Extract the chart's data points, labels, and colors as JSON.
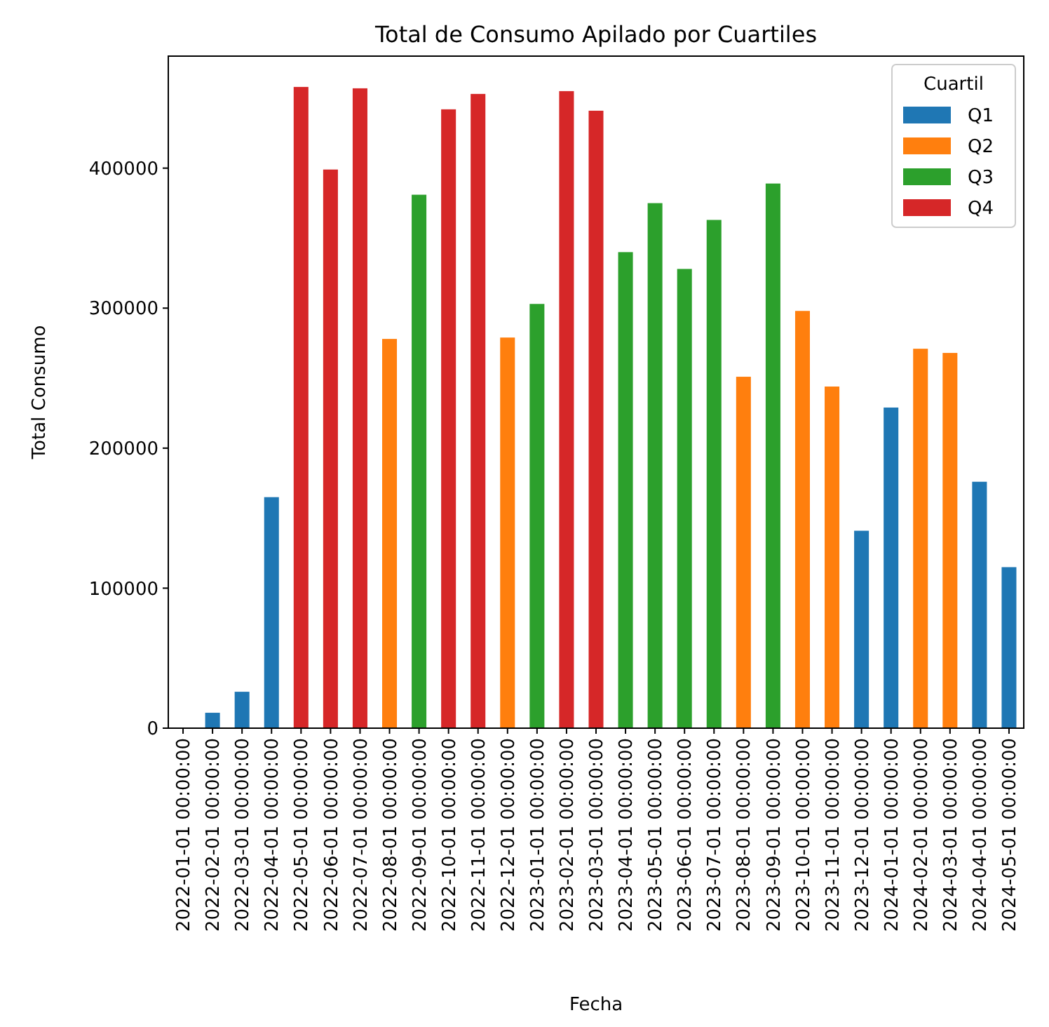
{
  "chart_data": {
    "type": "bar",
    "stacked": true,
    "title": "Total de Consumo Apilado por Cuartiles",
    "xlabel": "Fecha",
    "ylabel": "Total Consumo",
    "legend_title": "Cuartil",
    "legend": "top right",
    "grid": false,
    "categories": [
      "2022-01-01 00:00:00",
      "2022-02-01 00:00:00",
      "2022-03-01 00:00:00",
      "2022-04-01 00:00:00",
      "2022-05-01 00:00:00",
      "2022-06-01 00:00:00",
      "2022-07-01 00:00:00",
      "2022-08-01 00:00:00",
      "2022-09-01 00:00:00",
      "2022-10-01 00:00:00",
      "2022-11-01 00:00:00",
      "2022-12-01 00:00:00",
      "2023-01-01 00:00:00",
      "2023-02-01 00:00:00",
      "2023-03-01 00:00:00",
      "2023-04-01 00:00:00",
      "2023-05-01 00:00:00",
      "2023-06-01 00:00:00",
      "2023-07-01 00:00:00",
      "2023-08-01 00:00:00",
      "2023-09-01 00:00:00",
      "2023-10-01 00:00:00",
      "2023-11-01 00:00:00",
      "2023-12-01 00:00:00",
      "2024-01-01 00:00:00",
      "2024-02-01 00:00:00",
      "2024-03-01 00:00:00",
      "2024-04-01 00:00:00",
      "2024-05-01 00:00:00"
    ],
    "ylim": [
      0,
      480000
    ],
    "yticks": [
      0,
      100000,
      200000,
      300000,
      400000
    ],
    "series": [
      {
        "name": "Q1",
        "color": "#1f77b4",
        "values": [
          0,
          11000,
          26000,
          165000,
          null,
          null,
          null,
          null,
          null,
          null,
          null,
          null,
          null,
          null,
          null,
          null,
          null,
          null,
          null,
          null,
          null,
          null,
          null,
          141000,
          229000,
          null,
          null,
          176000,
          115000
        ]
      },
      {
        "name": "Q2",
        "color": "#ff7f0e",
        "values": [
          null,
          null,
          null,
          null,
          null,
          null,
          null,
          278000,
          null,
          null,
          null,
          279000,
          null,
          null,
          null,
          null,
          null,
          null,
          null,
          251000,
          null,
          298000,
          244000,
          null,
          null,
          271000,
          268000,
          null,
          null
        ]
      },
      {
        "name": "Q3",
        "color": "#2ca02c",
        "values": [
          null,
          null,
          null,
          null,
          null,
          null,
          null,
          null,
          381000,
          null,
          null,
          null,
          303000,
          null,
          null,
          340000,
          375000,
          328000,
          363000,
          null,
          389000,
          null,
          null,
          null,
          null,
          null,
          null,
          null,
          null
        ]
      },
      {
        "name": "Q4",
        "color": "#d62728",
        "values": [
          null,
          null,
          null,
          null,
          458000,
          399000,
          457000,
          null,
          null,
          442000,
          453000,
          null,
          null,
          455000,
          441000,
          null,
          null,
          null,
          null,
          null,
          null,
          null,
          null,
          null,
          null,
          null,
          null,
          null,
          null
        ]
      }
    ]
  }
}
